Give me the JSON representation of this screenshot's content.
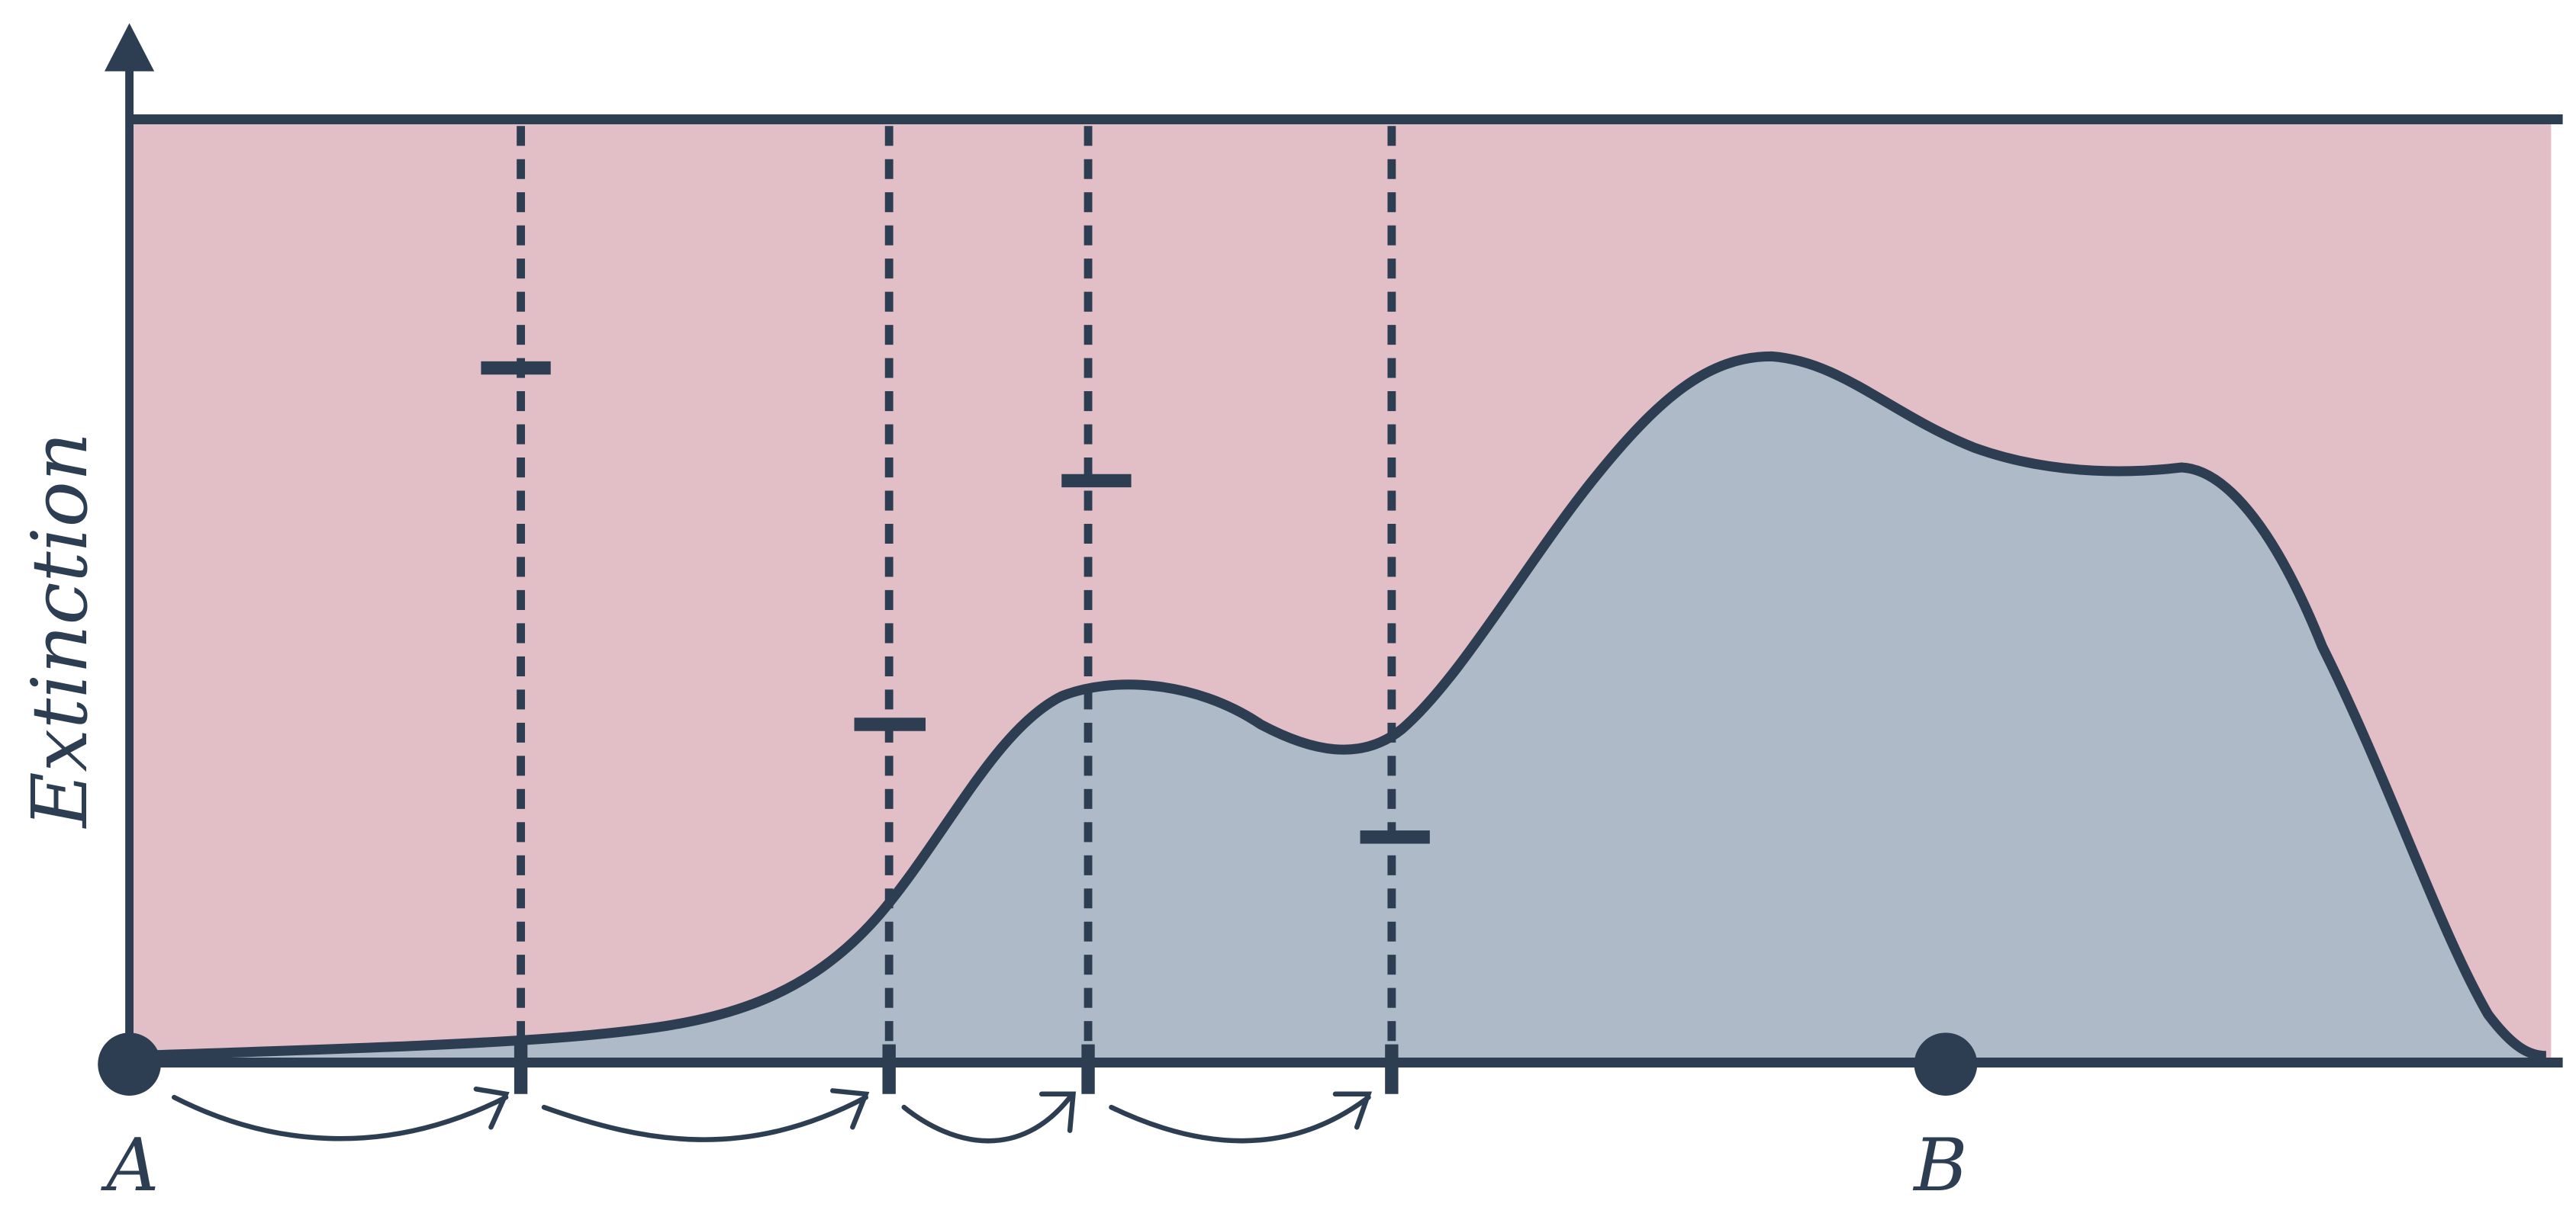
{
  "axis_label": "Extinction",
  "points": [
    {
      "label": "A"
    },
    {
      "label": "B"
    }
  ]
}
